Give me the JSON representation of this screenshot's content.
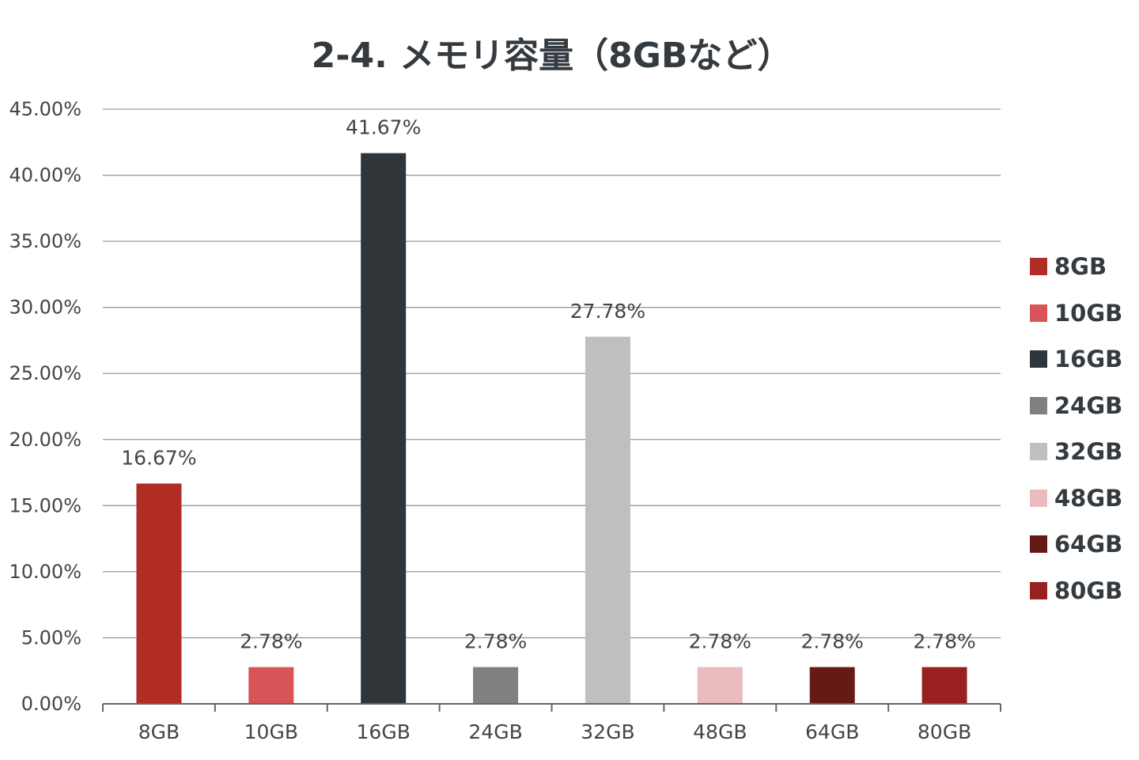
{
  "chart_data": {
    "type": "bar",
    "title": "2-4. メモリ容量（8GBなど）",
    "xlabel": "",
    "ylabel": "",
    "categories": [
      "8GB",
      "10GB",
      "16GB",
      "24GB",
      "32GB",
      "48GB",
      "64GB",
      "80GB"
    ],
    "values": [
      16.67,
      2.78,
      41.67,
      2.78,
      27.78,
      2.78,
      2.78,
      2.78
    ],
    "data_labels": [
      "16.67%",
      "2.78%",
      "41.67%",
      "2.78%",
      "27.78%",
      "2.78%",
      "2.78%",
      "2.78%"
    ],
    "colors": [
      "#b02c24",
      "#d85457",
      "#30353a",
      "#808080",
      "#bfbfbf",
      "#ebbcbe",
      "#661a16",
      "#98201f"
    ],
    "ylim": [
      0,
      45
    ],
    "yticks": [
      0,
      5,
      10,
      15,
      20,
      25,
      30,
      35,
      40,
      45
    ],
    "ytick_labels": [
      "0.00%",
      "5.00%",
      "10.00%",
      "15.00%",
      "20.00%",
      "25.00%",
      "30.00%",
      "35.00%",
      "40.00%",
      "45.00%"
    ],
    "grid": true,
    "legend_position": "right",
    "legend": [
      "8GB",
      "10GB",
      "16GB",
      "24GB",
      "32GB",
      "48GB",
      "64GB",
      "80GB"
    ]
  }
}
